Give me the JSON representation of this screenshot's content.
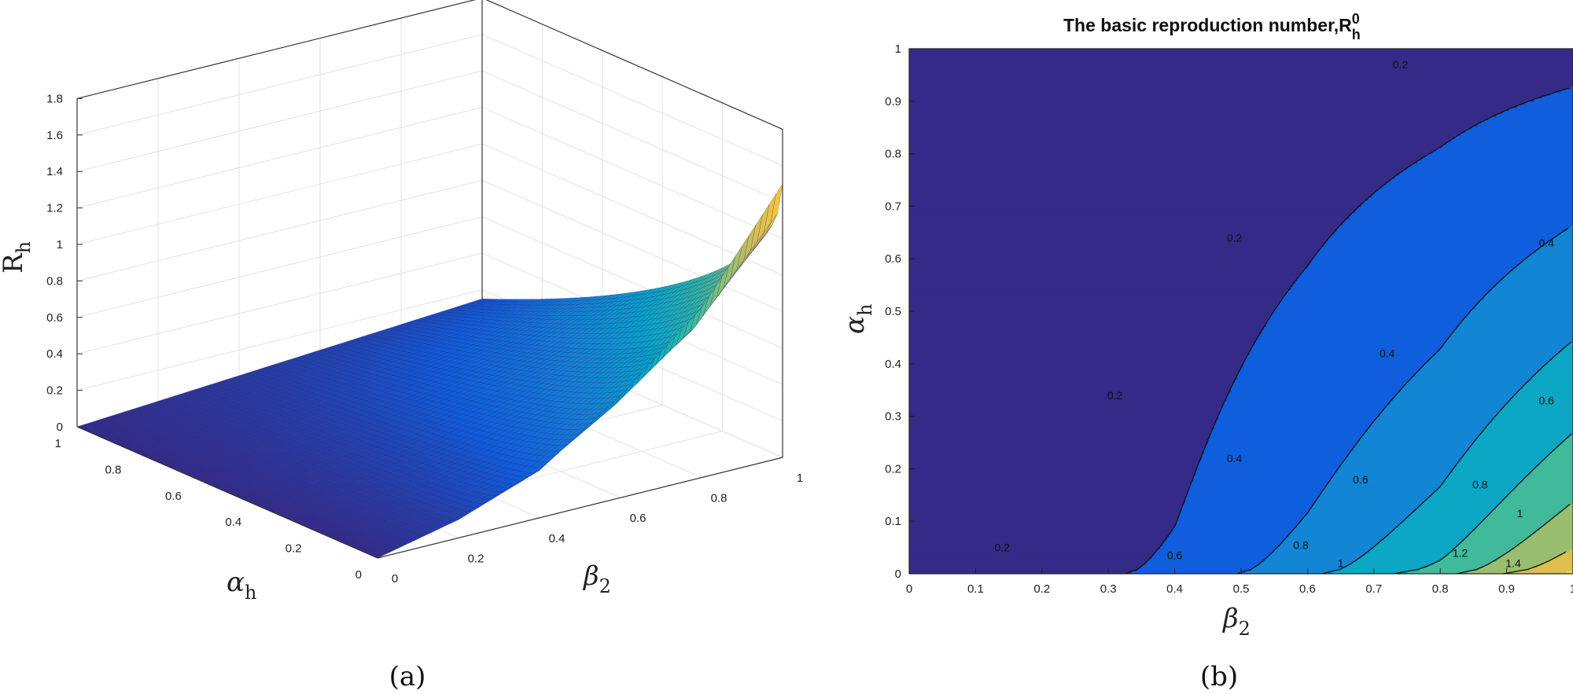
{
  "chart_data": [
    {
      "type": "surface",
      "xlabel": {
        "main": "β",
        "sub": "2"
      },
      "ylabel": {
        "main": "α",
        "sub": "h"
      },
      "zlabel": {
        "main": "R",
        "sub": "h"
      },
      "xlim": [
        0,
        1
      ],
      "ylim": [
        0,
        1
      ],
      "zlim": [
        0,
        1.8
      ],
      "x_ticks": [
        "0",
        "0.2",
        "0.4",
        "0.6",
        "0.8",
        "1"
      ],
      "y_ticks": [
        "0",
        "0.2",
        "0.4",
        "0.6",
        "0.8",
        "1"
      ],
      "z_ticks": [
        "0",
        "0.2",
        "0.4",
        "0.6",
        "0.8",
        "1",
        "1.2",
        "1.4",
        "1.6",
        "1.8"
      ],
      "surface_samples": {
        "beta2": [
          0,
          0.2,
          0.4,
          0.6,
          0.8,
          1.0
        ],
        "alpha_h_0": [
          0,
          0.1,
          0.26,
          0.56,
          0.93,
          1.5
        ],
        "alpha_h_1": [
          0,
          0.03,
          0.06,
          0.09,
          0.12,
          0.15
        ]
      },
      "grid": true,
      "colormap": "parula",
      "caption": "(a)"
    },
    {
      "type": "contour",
      "title": {
        "main": "The basic reproduction number,R",
        "sub": "h",
        "sup": "0"
      },
      "xlabel": {
        "main": "β",
        "sub": "2"
      },
      "ylabel": {
        "main": "α",
        "sub": "h"
      },
      "xlim": [
        0,
        1
      ],
      "ylim": [
        0,
        1
      ],
      "x_ticks": [
        "0",
        "0.1",
        "0.2",
        "0.3",
        "0.4",
        "0.5",
        "0.6",
        "0.7",
        "0.8",
        "0.9",
        "1"
      ],
      "y_ticks": [
        "0",
        "0.1",
        "0.2",
        "0.3",
        "0.4",
        "0.5",
        "0.6",
        "0.7",
        "0.8",
        "0.9",
        "1"
      ],
      "levels": [
        0.2,
        0.4,
        0.6,
        0.8,
        1.0,
        1.2,
        1.4
      ],
      "level_labels": [
        {
          "text": "0.2",
          "at": [
            0.74,
            0.97
          ]
        },
        {
          "text": "0.2",
          "at": [
            0.49,
            0.64
          ]
        },
        {
          "text": "0.2",
          "at": [
            0.31,
            0.34
          ]
        },
        {
          "text": "0.2",
          "at": [
            0.14,
            0.05
          ]
        },
        {
          "text": "0.4",
          "at": [
            0.96,
            0.63
          ]
        },
        {
          "text": "0.4",
          "at": [
            0.72,
            0.42
          ]
        },
        {
          "text": "0.4",
          "at": [
            0.49,
            0.22
          ]
        },
        {
          "text": "0.6",
          "at": [
            0.96,
            0.33
          ]
        },
        {
          "text": "0.6",
          "at": [
            0.68,
            0.18
          ]
        },
        {
          "text": "0.6",
          "at": [
            0.4,
            0.035
          ]
        },
        {
          "text": "0.8",
          "at": [
            0.86,
            0.17
          ]
        },
        {
          "text": "0.8",
          "at": [
            0.59,
            0.055
          ]
        },
        {
          "text": "1",
          "at": [
            0.92,
            0.115
          ]
        },
        {
          "text": "1",
          "at": [
            0.65,
            0.02
          ]
        },
        {
          "text": "1.2",
          "at": [
            0.83,
            0.04
          ]
        },
        {
          "text": "1.4",
          "at": [
            0.91,
            0.02
          ]
        }
      ],
      "colormap": "parula",
      "caption": "(b)"
    }
  ]
}
